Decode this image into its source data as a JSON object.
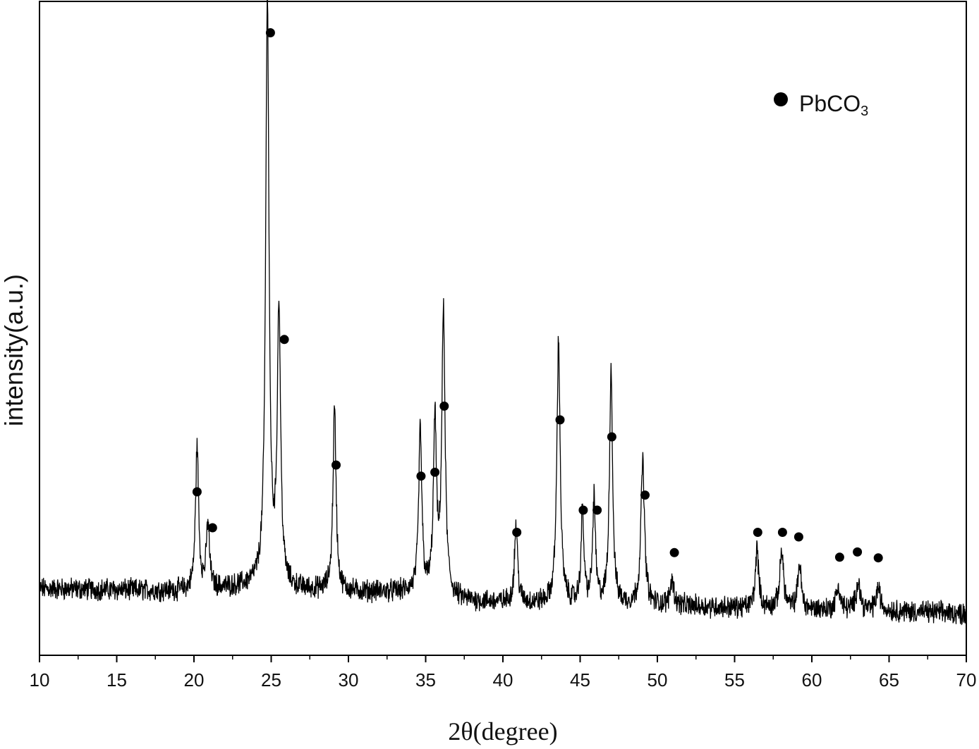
{
  "chart_data": {
    "type": "line",
    "title": "",
    "xlabel": "2θ(degree)",
    "ylabel": "intensity(a.u.)",
    "xlim": [
      10,
      70
    ],
    "ylim": [
      0,
      100
    ],
    "x_ticks": [
      10,
      15,
      20,
      25,
      30,
      35,
      40,
      45,
      50,
      55,
      60,
      65,
      70
    ],
    "x_tick_labels": [
      "10",
      "15",
      "20",
      "25",
      "30",
      "35",
      "40",
      "45",
      "50",
      "55",
      "60",
      "65",
      "70"
    ],
    "y_ticks_shown": false,
    "grid": false,
    "legend": {
      "position": "top-right",
      "marker": "filled-circle",
      "label_main": "PbCO",
      "label_sub": "3"
    },
    "series": [
      {
        "color": "#000000",
        "baseline": [
          [
            10,
            10.2
          ],
          [
            15,
            10.0
          ],
          [
            20,
            9.8
          ],
          [
            24,
            10.6
          ],
          [
            26,
            10.0
          ],
          [
            30,
            9.7
          ],
          [
            34,
            9.6
          ],
          [
            37,
            8.4
          ],
          [
            40,
            8.0
          ],
          [
            44,
            7.8
          ],
          [
            48,
            7.6
          ],
          [
            52,
            7.5
          ],
          [
            56,
            7.2
          ],
          [
            60,
            7.0
          ],
          [
            65,
            6.8
          ],
          [
            70,
            6.4
          ]
        ],
        "peaks": [
          {
            "x": 20.2,
            "height": 22.0,
            "width": 0.12
          },
          {
            "x": 20.9,
            "height": 10.0,
            "width": 0.12
          },
          {
            "x": 24.75,
            "height": 90.0,
            "width": 0.13
          },
          {
            "x": 25.5,
            "height": 42.0,
            "width": 0.13
          },
          {
            "x": 29.1,
            "height": 28.0,
            "width": 0.12
          },
          {
            "x": 34.65,
            "height": 25.0,
            "width": 0.12
          },
          {
            "x": 35.6,
            "height": 26.0,
            "width": 0.12
          },
          {
            "x": 36.15,
            "height": 43.0,
            "width": 0.13
          },
          {
            "x": 40.85,
            "height": 12.0,
            "width": 0.12
          },
          {
            "x": 43.6,
            "height": 40.0,
            "width": 0.13
          },
          {
            "x": 45.15,
            "height": 14.0,
            "width": 0.11
          },
          {
            "x": 45.9,
            "height": 16.0,
            "width": 0.11
          },
          {
            "x": 47.0,
            "height": 36.0,
            "width": 0.12
          },
          {
            "x": 49.05,
            "height": 22.0,
            "width": 0.14
          },
          {
            "x": 50.95,
            "height": 4.0,
            "width": 0.14
          },
          {
            "x": 56.45,
            "height": 9.0,
            "width": 0.13
          },
          {
            "x": 58.05,
            "height": 9.0,
            "width": 0.14
          },
          {
            "x": 59.2,
            "height": 7.0,
            "width": 0.13
          },
          {
            "x": 61.7,
            "height": 3.5,
            "width": 0.15
          },
          {
            "x": 63.0,
            "height": 4.5,
            "width": 0.15
          },
          {
            "x": 64.3,
            "height": 3.5,
            "width": 0.15
          }
        ]
      }
    ],
    "annotations": {
      "marker": "filled-circle",
      "points": [
        [
          20.2,
          25.0
        ],
        [
          21.2,
          19.5
        ],
        [
          24.95,
          95.2
        ],
        [
          25.85,
          48.3
        ],
        [
          29.2,
          29.1
        ],
        [
          34.7,
          27.4
        ],
        [
          35.6,
          28.0
        ],
        [
          36.2,
          38.1
        ],
        [
          40.9,
          18.8
        ],
        [
          43.7,
          36.0
        ],
        [
          45.2,
          22.2
        ],
        [
          46.1,
          22.2
        ],
        [
          47.05,
          33.4
        ],
        [
          49.2,
          24.5
        ],
        [
          51.1,
          15.7
        ],
        [
          56.5,
          18.8
        ],
        [
          58.1,
          18.8
        ],
        [
          59.15,
          18.1
        ],
        [
          61.8,
          15.0
        ],
        [
          62.95,
          15.8
        ],
        [
          64.3,
          14.9
        ]
      ]
    }
  }
}
